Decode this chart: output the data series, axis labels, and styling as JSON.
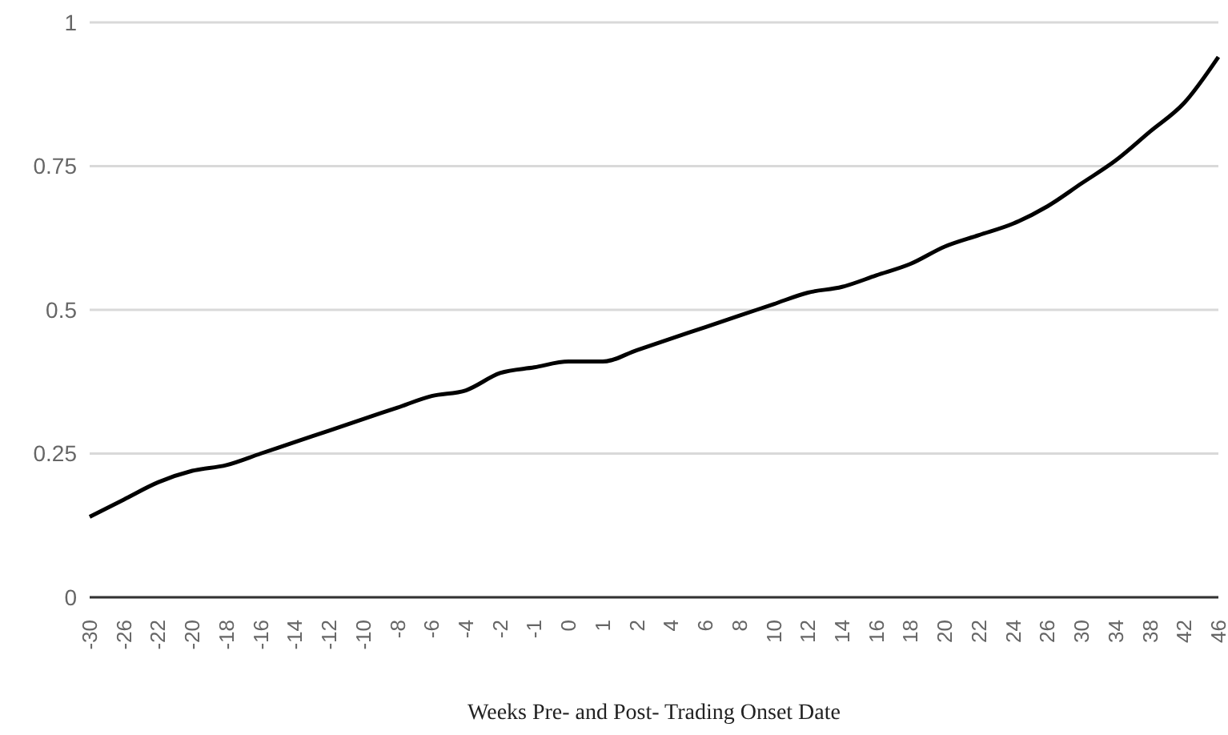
{
  "chart_data": {
    "type": "line",
    "xlabel": "Weeks Pre- and Post- Trading Onset Date",
    "categories": [
      "-30",
      "-26",
      "-22",
      "-20",
      "-18",
      "-16",
      "-14",
      "-12",
      "-10",
      "-8",
      "-6",
      "-4",
      "-2",
      "-1",
      "0",
      "1",
      "2",
      "4",
      "6",
      "8",
      "10",
      "12",
      "14",
      "16",
      "18",
      "20",
      "22",
      "24",
      "26",
      "30",
      "34",
      "38",
      "42",
      "46"
    ],
    "series": [
      {
        "color": "#000000",
        "values": [
          0.14,
          0.17,
          0.2,
          0.22,
          0.23,
          0.25,
          0.27,
          0.29,
          0.31,
          0.33,
          0.35,
          0.36,
          0.39,
          0.4,
          0.41,
          0.41,
          0.43,
          0.45,
          0.47,
          0.49,
          0.51,
          0.53,
          0.54,
          0.56,
          0.58,
          0.61,
          0.63,
          0.65,
          0.68,
          0.72,
          0.76,
          0.81,
          0.86,
          0.94
        ]
      }
    ],
    "ylim": [
      0,
      1
    ],
    "yticks": [
      0,
      0.25,
      0.5,
      0.75,
      1
    ],
    "grid": "y",
    "marker": "none",
    "line_style": "solid"
  }
}
